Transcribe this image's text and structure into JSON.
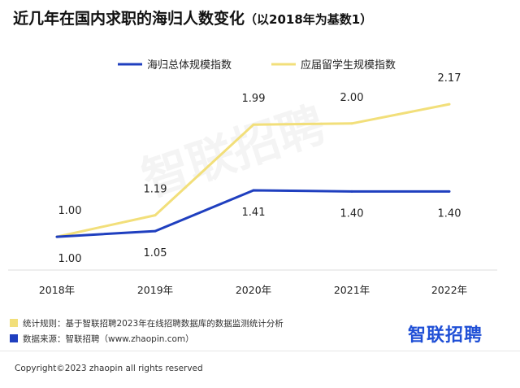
{
  "title": "近几年在国内求职的海归人数变化",
  "subtitle": "（以2018年为基数1）",
  "watermark": "智联招聘",
  "chart_data": {
    "type": "line",
    "categories": [
      "2018年",
      "2019年",
      "2020年",
      "2021年",
      "2022年"
    ],
    "series": [
      {
        "name": "海归总体规模指数",
        "values": [
          1.0,
          1.05,
          1.41,
          1.4,
          1.4
        ],
        "labels": [
          "1.00",
          "1.05",
          "1.41",
          "1.40",
          "1.40"
        ],
        "color": "#1f3fbf"
      },
      {
        "name": "应届留学生规模指数",
        "values": [
          1.0,
          1.19,
          1.99,
          2.0,
          2.17
        ],
        "labels": [
          "1.00",
          "1.19",
          "1.99",
          "2.00",
          "2.17"
        ],
        "color": "#f2df7a"
      }
    ],
    "ylim": [
      0.9,
      2.3
    ],
    "grid": false,
    "legend": "top-center"
  },
  "notes": [
    {
      "text": "统计规则：基于智联招聘2023年在线招聘数据库的数据监测统计分析",
      "color": "#f2df7a"
    },
    {
      "text": "数据来源：智联招聘（www.zhaopin.com）",
      "color": "#1f3fbf"
    }
  ],
  "brand": "智联招聘",
  "copyright": "Copyright©2023 zhaopin all rights reserved"
}
